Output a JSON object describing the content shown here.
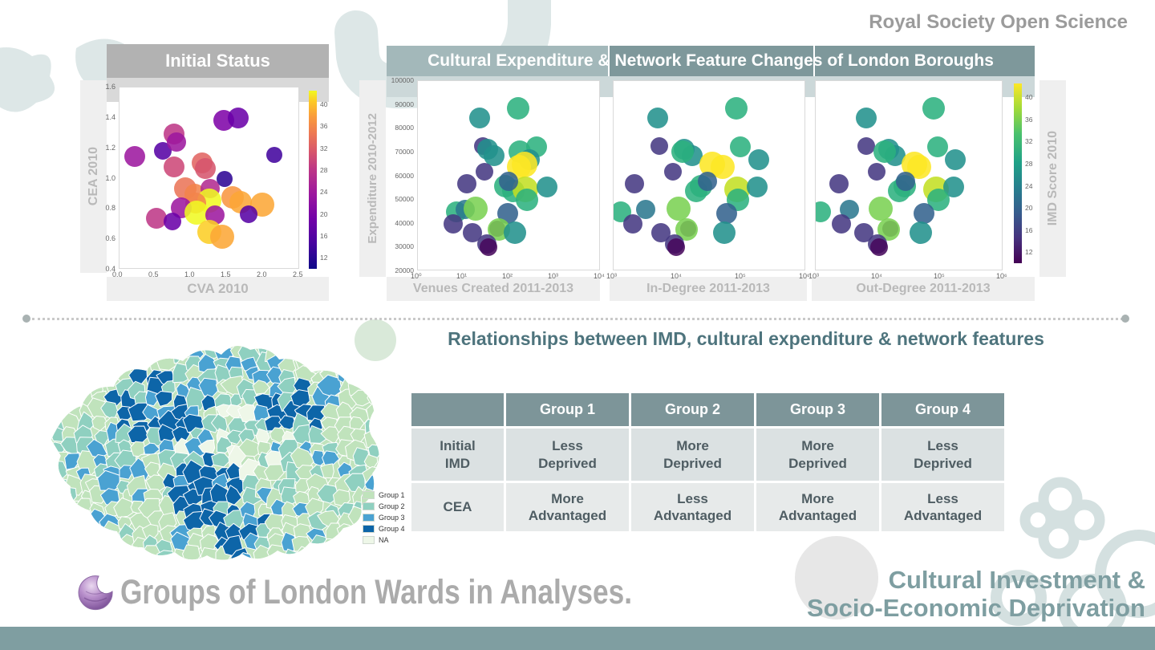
{
  "journal": "Royal Society Open Science",
  "headers": {
    "initial_status": "Initial Status",
    "changes": "Cultural Expenditure & Network Feature Changes of London Boroughs",
    "relationships": "Relationships between IMD, cultural expenditure & network features"
  },
  "footer": {
    "wards_title": "Groups of London Wards in Analyses.",
    "theme_line1": "Cultural Investment &",
    "theme_line2": "Socio-Economic Deprivation"
  },
  "chart_data": {
    "initial_status": {
      "type": "scatter",
      "title": "Initial Status",
      "xlabel": "CVA 2010",
      "ylabel": "CEA 2010",
      "xlim": [
        0,
        2.5
      ],
      "ylim": [
        0.4,
        1.6
      ],
      "xticks": [
        {
          "v": 0,
          "l": "0.0"
        },
        {
          "v": 0.5,
          "l": "0.5"
        },
        {
          "v": 1.0,
          "l": "1.0"
        },
        {
          "v": 1.5,
          "l": "1.5"
        },
        {
          "v": 2.0,
          "l": "2.0"
        },
        {
          "v": 2.5,
          "l": "2.5"
        }
      ],
      "yticks": [
        {
          "v": 0.4,
          "l": "0.4"
        },
        {
          "v": 0.6,
          "l": "0.6"
        },
        {
          "v": 0.8,
          "l": "0.8"
        },
        {
          "v": 1.0,
          "l": "1.0"
        },
        {
          "v": 1.2,
          "l": "1.2"
        },
        {
          "v": 1.4,
          "l": "1.4"
        },
        {
          "v": 1.6,
          "l": "1.6"
        }
      ],
      "colorbar": {
        "label": "",
        "min": 10,
        "max": 42.5,
        "ticks": [
          12,
          16,
          20,
          24,
          28,
          32,
          36,
          40
        ],
        "palette": "plasma"
      },
      "points": [
        {
          "x": 0.21,
          "y": 1.14,
          "imd": 23,
          "c": "#9c179e",
          "r": 13
        },
        {
          "x": 0.61,
          "y": 1.18,
          "imd": 16,
          "c": "#5601a4",
          "r": 11
        },
        {
          "x": 0.76,
          "y": 1.29,
          "imd": 28,
          "c": "#bd3786",
          "r": 13
        },
        {
          "x": 0.8,
          "y": 1.24,
          "imd": 23,
          "c": "#9c179e",
          "r": 12
        },
        {
          "x": 0.76,
          "y": 1.07,
          "imd": 30,
          "c": "#cc4778",
          "r": 13
        },
        {
          "x": 1.16,
          "y": 1.1,
          "imd": 33,
          "c": "#e16462",
          "r": 13
        },
        {
          "x": 1.2,
          "y": 1.06,
          "imd": 31,
          "c": "#d6556d",
          "r": 13
        },
        {
          "x": 1.46,
          "y": 1.38,
          "imd": 20,
          "c": "#7e03a8",
          "r": 13
        },
        {
          "x": 1.66,
          "y": 1.4,
          "imd": 18,
          "c": "#6a00a8",
          "r": 13
        },
        {
          "x": 2.16,
          "y": 1.15,
          "imd": 14,
          "c": "#41049d",
          "r": 10
        },
        {
          "x": 1.47,
          "y": 0.99,
          "imd": 12,
          "c": "#2d0594",
          "r": 10
        },
        {
          "x": 0.92,
          "y": 0.93,
          "imd": 34,
          "c": "#ea7457",
          "r": 14
        },
        {
          "x": 1.05,
          "y": 0.89,
          "imd": 36,
          "c": "#f2844b",
          "r": 13
        },
        {
          "x": 1.27,
          "y": 0.93,
          "imd": 26,
          "c": "#b12a90",
          "r": 12
        },
        {
          "x": 1.26,
          "y": 0.85,
          "imd": 42,
          "c": "#f0f921",
          "r": 15
        },
        {
          "x": 1.06,
          "y": 0.83,
          "imd": 36,
          "c": "#f2844b",
          "r": 13
        },
        {
          "x": 1.58,
          "y": 0.87,
          "imd": 37,
          "c": "#f89540",
          "r": 14
        },
        {
          "x": 1.69,
          "y": 0.84,
          "imd": 39,
          "c": "#fca636",
          "r": 14
        },
        {
          "x": 2.0,
          "y": 0.82,
          "imd": 39,
          "c": "#fca636",
          "r": 15
        },
        {
          "x": 0.86,
          "y": 0.8,
          "imd": 23,
          "c": "#9c179e",
          "r": 13
        },
        {
          "x": 1.08,
          "y": 0.77,
          "imd": 42,
          "c": "#f0f921",
          "r": 15
        },
        {
          "x": 1.33,
          "y": 0.75,
          "imd": 23,
          "c": "#9c179e",
          "r": 12
        },
        {
          "x": 1.81,
          "y": 0.76,
          "imd": 16,
          "c": "#5601a4",
          "r": 11
        },
        {
          "x": 0.52,
          "y": 0.73,
          "imd": 28,
          "c": "#bd3786",
          "r": 13
        },
        {
          "x": 0.74,
          "y": 0.71,
          "imd": 18,
          "c": "#6a00a8",
          "r": 11
        },
        {
          "x": 1.26,
          "y": 0.64,
          "imd": 41,
          "c": "#fcce25",
          "r": 15
        },
        {
          "x": 1.43,
          "y": 0.61,
          "imd": 39,
          "c": "#fca636",
          "r": 15
        }
      ]
    },
    "change_panels": {
      "type": "scatter",
      "ylabel": "Expenditure 2010-2012",
      "ylim": [
        20000,
        100000
      ],
      "yticks": [
        {
          "v": 20000,
          "l": "20000"
        },
        {
          "v": 30000,
          "l": "30000"
        },
        {
          "v": 40000,
          "l": "40000"
        },
        {
          "v": 50000,
          "l": "50000"
        },
        {
          "v": 60000,
          "l": "60000"
        },
        {
          "v": 70000,
          "l": "70000"
        },
        {
          "v": 80000,
          "l": "80000"
        },
        {
          "v": 90000,
          "l": "90000"
        },
        {
          "v": 100000,
          "l": "100000"
        }
      ],
      "colorbar": {
        "label": "IMD Score 2010",
        "min": 10,
        "max": 42.5,
        "ticks": [
          12,
          16,
          20,
          24,
          28,
          32,
          36,
          40
        ],
        "palette": "viridis"
      },
      "panels": [
        {
          "key": "venues",
          "xlabel": "Venues Created 2011-2013",
          "xscale": "log",
          "xlim": [
            1,
            10000
          ],
          "xticks": [
            {
              "v": 1,
              "l": "10⁰"
            },
            {
              "v": 10,
              "l": "10¹"
            },
            {
              "v": 100,
              "l": "10²"
            },
            {
              "v": 1000,
              "l": "10³"
            },
            {
              "v": 10000,
              "l": "10⁴"
            }
          ]
        },
        {
          "key": "indegree",
          "xlabel": "In-Degree 2011-2013",
          "xscale": "log",
          "xlim": [
            1000,
            1000000
          ],
          "xticks": [
            {
              "v": 1000,
              "l": "10³"
            },
            {
              "v": 10000,
              "l": "10⁴"
            },
            {
              "v": 100000,
              "l": "10⁵"
            },
            {
              "v": 1000000,
              "l": "10⁶"
            }
          ]
        },
        {
          "key": "outdegree",
          "xlabel": "Out-Degree 2011-2013",
          "xscale": "log",
          "xlim": [
            1000,
            1000000
          ],
          "xticks": [
            {
              "v": 1000,
              "l": "10³"
            },
            {
              "v": 10000,
              "l": "10⁴"
            },
            {
              "v": 100000,
              "l": "10⁵"
            },
            {
              "v": 1000000,
              "l": "10⁶"
            }
          ]
        }
      ],
      "boroughs": [
        {
          "y": 84500,
          "imd": 27,
          "c": "#21918c",
          "r": 13,
          "venues": 23,
          "indegree": 5000,
          "outdegree": 6500
        },
        {
          "y": 88500,
          "imd": 31,
          "c": "#2cb17e",
          "r": 14,
          "venues": 160,
          "indegree": 85000,
          "outdegree": 80000
        },
        {
          "y": 72500,
          "imd": 17,
          "c": "#453882",
          "r": 11,
          "venues": 27,
          "indegree": 5200,
          "outdegree": 6600
        },
        {
          "y": 71000,
          "imd": 27,
          "c": "#21918c",
          "r": 13,
          "venues": 35,
          "indegree": 13000,
          "outdegree": 15000
        },
        {
          "y": 68500,
          "imd": 26,
          "c": "#21918c",
          "r": 13,
          "venues": 48,
          "indegree": 17000,
          "outdegree": 19000
        },
        {
          "y": 70000,
          "imd": 31,
          "c": "#2cb17e",
          "r": 14,
          "venues": 175,
          "indegree": 12000,
          "outdegree": 13000
        },
        {
          "y": 72000,
          "imd": 31,
          "c": "#2cb17e",
          "r": 13,
          "venues": 420,
          "indegree": 98000,
          "outdegree": 92000
        },
        {
          "y": 66500,
          "imd": 26,
          "c": "#21918c",
          "r": 13,
          "venues": 290,
          "indegree": 190000,
          "outdegree": 180000
        },
        {
          "y": 64500,
          "imd": 42,
          "c": "#fde725",
          "r": 16,
          "venues": 230,
          "indegree": 36000,
          "outdegree": 39000
        },
        {
          "y": 63500,
          "imd": 42,
          "c": "#fde725",
          "r": 15,
          "venues": 170,
          "indegree": 52000,
          "outdegree": 47000
        },
        {
          "y": 61500,
          "imd": 17,
          "c": "#453882",
          "r": 11,
          "venues": 30,
          "indegree": 8500,
          "outdegree": 9500
        },
        {
          "y": 56500,
          "imd": 16,
          "c": "#453882",
          "r": 12,
          "venues": 12,
          "indegree": 2100,
          "outdegree": 2400
        },
        {
          "y": 55500,
          "imd": 31,
          "c": "#2cb17e",
          "r": 14,
          "venues": 85,
          "indegree": 24000,
          "outdegree": 27000
        },
        {
          "y": 53500,
          "imd": 30,
          "c": "#2cb17e",
          "r": 14,
          "venues": 130,
          "indegree": 20000,
          "outdegree": 22000
        },
        {
          "y": 54000,
          "imd": 38,
          "c": "#c2df23",
          "r": 16,
          "venues": 240,
          "indegree": 88000,
          "outdegree": 86000
        },
        {
          "y": 55000,
          "imd": 26,
          "c": "#21918c",
          "r": 13,
          "venues": 700,
          "indegree": 180000,
          "outdegree": 170000
        },
        {
          "y": 57500,
          "imd": 22,
          "c": "#33628d",
          "r": 12,
          "venues": 100,
          "indegree": 30000,
          "outdegree": 28000
        },
        {
          "y": 49500,
          "imd": 31,
          "c": "#2cb17e",
          "r": 14,
          "venues": 260,
          "indegree": 90000,
          "outdegree": 95000
        },
        {
          "y": 44500,
          "imd": 31,
          "c": "#2cb17e",
          "r": 13,
          "venues": 7,
          "indegree": 1300,
          "outdegree": 1200
        },
        {
          "y": 45500,
          "imd": 24,
          "c": "#2a788e",
          "r": 12,
          "venues": 11,
          "indegree": 3200,
          "outdegree": 3500
        },
        {
          "y": 46000,
          "imd": 36,
          "c": "#7ad151",
          "r": 15,
          "venues": 19,
          "indegree": 10500,
          "outdegree": 11000
        },
        {
          "y": 44000,
          "imd": 22,
          "c": "#33628d",
          "r": 13,
          "venues": 95,
          "indegree": 60000,
          "outdegree": 55000
        },
        {
          "y": 39500,
          "imd": 17,
          "c": "#453882",
          "r": 12,
          "venues": 6,
          "indegree": 2000,
          "outdegree": 2600
        },
        {
          "y": 35500,
          "imd": 16,
          "c": "#453882",
          "r": 12,
          "venues": 16,
          "indegree": 5500,
          "outdegree": 6000
        },
        {
          "y": 37500,
          "imd": 11,
          "c": "#46085c",
          "r": 10,
          "venues": 57,
          "indegree": 15000,
          "outdegree": 16000
        },
        {
          "y": 37000,
          "imd": 36,
          "c": "#7ad151",
          "r": 14,
          "venues": 62,
          "indegree": 14000,
          "outdegree": 15000
        },
        {
          "y": 35500,
          "imd": 27,
          "c": "#21918c",
          "r": 14,
          "venues": 140,
          "indegree": 55000,
          "outdegree": 50000
        },
        {
          "y": 31000,
          "imd": 17,
          "c": "#453882",
          "r": 12,
          "venues": 33,
          "indegree": 9000,
          "outdegree": 10000
        },
        {
          "y": 29500,
          "imd": 13,
          "c": "#46085c",
          "r": 11,
          "venues": 36,
          "indegree": 9500,
          "outdegree": 10500
        }
      ]
    }
  },
  "map": {
    "caption": "Groups of London Wards in Analyses.",
    "legend": [
      {
        "label": "Group 1",
        "color": "#c0e3bc"
      },
      {
        "label": "Group 2",
        "color": "#8fd0c0"
      },
      {
        "label": "Group 3",
        "color": "#4aa2d2"
      },
      {
        "label": "Group 4",
        "color": "#0d65a8"
      },
      {
        "label": "NA",
        "color": "#eef7e8"
      }
    ]
  },
  "table": {
    "headers": [
      "",
      "Group 1",
      "Group 2",
      "Group 3",
      "Group 4"
    ],
    "rows": [
      {
        "label": "Initial\nIMD",
        "cells": [
          "Less\nDeprived",
          "More\nDeprived",
          "More\nDeprived",
          "Less\nDeprived"
        ]
      },
      {
        "label": "CEA",
        "cells": [
          "More\nAdvantaged",
          "Less\nAdvantaged",
          "More\nAdvantaged",
          "Less\nAdvantaged"
        ]
      }
    ]
  },
  "colors": {
    "header_gray": "#b2b2b2",
    "header_teal_light": "#a3b8ba",
    "header_teal": "#7e989b",
    "bottom_bar": "#7f9ea1",
    "accent_text": "#4e747d",
    "journal_gray": "#9b9b9b"
  }
}
